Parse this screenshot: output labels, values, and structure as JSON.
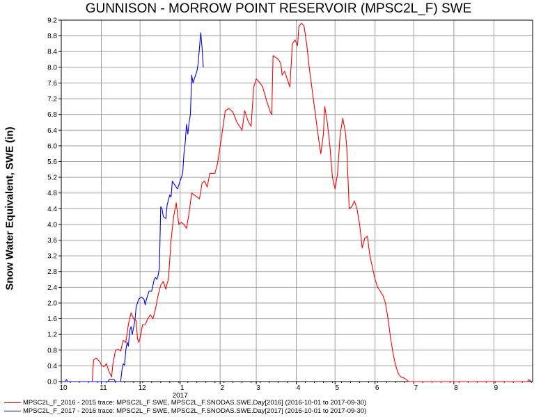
{
  "chart_data": {
    "type": "line",
    "title": "GUNNISON - MORROW POINT RESERVOIR (MPSC2L_F) SWE",
    "ylabel": "Snow Water Equivalent, SWE (in)",
    "xlabel": "",
    "x_tick_labels": [
      "10",
      "11",
      "12",
      "1",
      "2",
      "3",
      "4",
      "5",
      "6",
      "7",
      "8",
      "9"
    ],
    "x_year_label": "2017",
    "xlim": [
      "2016-10-01",
      "2017-09-30"
    ],
    "ylim": [
      0,
      9.2
    ],
    "y_ticks": [
      "0.0",
      "0.4",
      "0.8",
      "1.2",
      "1.6",
      "2.0",
      "2.4",
      "2.8",
      "3.2",
      "3.6",
      "4.0",
      "4.4",
      "4.8",
      "5.2",
      "5.6",
      "6.0",
      "6.4",
      "6.8",
      "7.2",
      "7.6",
      "8.0",
      "8.4",
      "8.8",
      "9.2"
    ],
    "grid": true,
    "legend_position": "bottom",
    "series": [
      {
        "name": "MPSC2L_F_2016 - 2015 trace: MPSC2L_F SWE, MPSC2L_F.SNODAS.SWE.Day[2016] (2016-10-01 to 2017-09-30)",
        "color": "#ff0000",
        "points": [
          [
            "2016-10-01",
            0.0
          ],
          [
            "2016-10-25",
            0.0
          ],
          [
            "2016-10-26",
            0.55
          ],
          [
            "2016-10-28",
            0.6
          ],
          [
            "2016-10-31",
            0.5
          ],
          [
            "2016-11-01",
            0.42
          ],
          [
            "2016-11-03",
            0.38
          ],
          [
            "2016-11-05",
            0.45
          ],
          [
            "2016-11-07",
            0.25
          ],
          [
            "2016-11-09",
            0.12
          ],
          [
            "2016-11-10",
            0.45
          ],
          [
            "2016-11-12",
            0.8
          ],
          [
            "2016-11-14",
            0.82
          ],
          [
            "2016-11-16",
            0.78
          ],
          [
            "2016-11-18",
            1.05
          ],
          [
            "2016-11-20",
            1.0
          ],
          [
            "2016-11-22",
            1.45
          ],
          [
            "2016-11-24",
            1.75
          ],
          [
            "2016-11-26",
            1.6
          ],
          [
            "2016-11-28",
            1.55
          ],
          [
            "2016-11-29",
            1.1
          ],
          [
            "2016-11-30",
            1.0
          ],
          [
            "2016-12-01",
            1.1
          ],
          [
            "2016-12-03",
            1.45
          ],
          [
            "2016-12-05",
            1.45
          ],
          [
            "2016-12-07",
            1.6
          ],
          [
            "2016-12-09",
            1.7
          ],
          [
            "2016-12-11",
            1.6
          ],
          [
            "2016-12-13",
            1.85
          ],
          [
            "2016-12-15",
            2.2
          ],
          [
            "2016-12-17",
            2.45
          ],
          [
            "2016-12-19",
            2.55
          ],
          [
            "2016-12-21",
            2.35
          ],
          [
            "2016-12-22",
            2.5
          ],
          [
            "2016-12-23",
            2.6
          ],
          [
            "2016-12-25",
            3.6
          ],
          [
            "2016-12-27",
            4.2
          ],
          [
            "2016-12-29",
            4.55
          ],
          [
            "2016-12-31",
            4.0
          ],
          [
            "2017-01-02",
            4.05
          ],
          [
            "2017-01-04",
            4.0
          ],
          [
            "2017-01-06",
            3.9
          ],
          [
            "2017-01-08",
            4.3
          ],
          [
            "2017-01-10",
            4.8
          ],
          [
            "2017-01-12",
            4.75
          ],
          [
            "2017-01-14",
            4.7
          ],
          [
            "2017-01-16",
            4.65
          ],
          [
            "2017-01-18",
            5.05
          ],
          [
            "2017-01-20",
            5.1
          ],
          [
            "2017-01-22",
            4.95
          ],
          [
            "2017-01-24",
            5.3
          ],
          [
            "2017-01-28",
            5.3
          ],
          [
            "2017-01-30",
            5.55
          ],
          [
            "2017-02-02",
            6.2
          ],
          [
            "2017-02-05",
            6.9
          ],
          [
            "2017-02-08",
            6.95
          ],
          [
            "2017-02-11",
            6.85
          ],
          [
            "2017-02-14",
            6.6
          ],
          [
            "2017-02-18",
            6.4
          ],
          [
            "2017-02-20",
            6.9
          ],
          [
            "2017-02-23",
            6.6
          ],
          [
            "2017-02-25",
            6.5
          ],
          [
            "2017-02-27",
            7.5
          ],
          [
            "2017-03-01",
            7.7
          ],
          [
            "2017-03-04",
            7.6
          ],
          [
            "2017-03-06",
            7.5
          ],
          [
            "2017-03-09",
            7.15
          ],
          [
            "2017-03-12",
            6.85
          ],
          [
            "2017-03-13",
            6.8
          ],
          [
            "2017-03-14",
            8.3
          ],
          [
            "2017-03-16",
            8.25
          ],
          [
            "2017-03-18",
            8.2
          ],
          [
            "2017-03-20",
            8.1
          ],
          [
            "2017-03-21",
            7.8
          ],
          [
            "2017-03-23",
            7.9
          ],
          [
            "2017-03-25",
            7.7
          ],
          [
            "2017-03-27",
            7.5
          ],
          [
            "2017-03-29",
            8.6
          ],
          [
            "2017-03-31",
            8.7
          ],
          [
            "2017-04-02",
            8.55
          ],
          [
            "2017-04-03",
            9.05
          ],
          [
            "2017-04-05",
            9.12
          ],
          [
            "2017-04-07",
            9.05
          ],
          [
            "2017-04-09",
            8.6
          ],
          [
            "2017-04-11",
            8.0
          ],
          [
            "2017-04-13",
            7.5
          ],
          [
            "2017-04-15",
            7.0
          ],
          [
            "2017-04-17",
            6.5
          ],
          [
            "2017-04-19",
            6.0
          ],
          [
            "2017-04-20",
            5.8
          ],
          [
            "2017-04-22",
            6.3
          ],
          [
            "2017-04-23",
            7.0
          ],
          [
            "2017-04-25",
            6.6
          ],
          [
            "2017-04-27",
            6.0
          ],
          [
            "2017-04-29",
            5.2
          ],
          [
            "2017-05-01",
            4.9
          ],
          [
            "2017-05-03",
            5.3
          ],
          [
            "2017-05-05",
            6.3
          ],
          [
            "2017-05-07",
            6.7
          ],
          [
            "2017-05-09",
            6.35
          ],
          [
            "2017-05-10",
            6.0
          ],
          [
            "2017-05-12",
            4.4
          ],
          [
            "2017-05-14",
            4.45
          ],
          [
            "2017-05-16",
            4.6
          ],
          [
            "2017-05-18",
            4.4
          ],
          [
            "2017-05-20",
            4.0
          ],
          [
            "2017-05-22",
            3.4
          ],
          [
            "2017-05-24",
            3.65
          ],
          [
            "2017-05-26",
            3.7
          ],
          [
            "2017-05-28",
            3.2
          ],
          [
            "2017-05-30",
            2.9
          ],
          [
            "2017-06-01",
            2.6
          ],
          [
            "2017-06-03",
            2.4
          ],
          [
            "2017-06-05",
            2.3
          ],
          [
            "2017-06-07",
            2.2
          ],
          [
            "2017-06-09",
            2.0
          ],
          [
            "2017-06-11",
            1.6
          ],
          [
            "2017-06-13",
            1.1
          ],
          [
            "2017-06-15",
            0.7
          ],
          [
            "2017-06-17",
            0.4
          ],
          [
            "2017-06-19",
            0.2
          ],
          [
            "2017-06-21",
            0.12
          ],
          [
            "2017-06-24",
            0.08
          ],
          [
            "2017-06-27",
            0.0
          ],
          [
            "2017-09-27",
            0.0
          ],
          [
            "2017-09-28",
            0.05
          ],
          [
            "2017-09-30",
            0.0
          ]
        ]
      },
      {
        "name": "MPSC2L_F_2017 - 2016 trace: MPSC2L_F SWE, MPSC2L_F.SNODAS.SWE.Day[2017] (2016-10-01 to 2017-09-30)",
        "color": "#0000ff",
        "points": [
          [
            "2016-10-01",
            0.0
          ],
          [
            "2016-10-04",
            0.0
          ],
          [
            "2016-10-05",
            0.05
          ],
          [
            "2016-10-06",
            0.0
          ],
          [
            "2016-11-06",
            0.0
          ],
          [
            "2016-11-07",
            0.05
          ],
          [
            "2016-11-11",
            0.05
          ],
          [
            "2016-11-12",
            0.0
          ],
          [
            "2016-11-16",
            0.0
          ],
          [
            "2016-11-17",
            0.3
          ],
          [
            "2016-11-18",
            0.45
          ],
          [
            "2016-11-19",
            0.42
          ],
          [
            "2016-11-20",
            0.8
          ],
          [
            "2016-11-21",
            1.0
          ],
          [
            "2016-11-22",
            0.9
          ],
          [
            "2016-11-23",
            1.3
          ],
          [
            "2016-11-24",
            1.4
          ],
          [
            "2016-11-25",
            1.2
          ],
          [
            "2016-11-27",
            1.55
          ],
          [
            "2016-11-28",
            1.9
          ],
          [
            "2016-11-30",
            2.1
          ],
          [
            "2016-12-02",
            2.15
          ],
          [
            "2016-12-04",
            2.1
          ],
          [
            "2016-12-05",
            1.95
          ],
          [
            "2016-12-06",
            2.1
          ],
          [
            "2016-12-08",
            2.3
          ],
          [
            "2016-12-10",
            2.3
          ],
          [
            "2016-12-12",
            2.6
          ],
          [
            "2016-12-13",
            2.65
          ],
          [
            "2016-12-14",
            2.6
          ],
          [
            "2016-12-15",
            2.7
          ],
          [
            "2016-12-16",
            2.9
          ],
          [
            "2016-12-17",
            4.45
          ],
          [
            "2016-12-18",
            4.4
          ],
          [
            "2016-12-19",
            4.2
          ],
          [
            "2016-12-21",
            4.15
          ],
          [
            "2016-12-22",
            4.5
          ],
          [
            "2016-12-24",
            4.75
          ],
          [
            "2016-12-25",
            4.7
          ],
          [
            "2016-12-26",
            5.1
          ],
          [
            "2016-12-28",
            5.0
          ],
          [
            "2016-12-30",
            4.9
          ],
          [
            "2017-01-01",
            5.1
          ],
          [
            "2017-01-03",
            5.3
          ],
          [
            "2017-01-04",
            5.8
          ],
          [
            "2017-01-05",
            6.1
          ],
          [
            "2017-01-06",
            6.55
          ],
          [
            "2017-01-07",
            6.3
          ],
          [
            "2017-01-08",
            6.6
          ],
          [
            "2017-01-09",
            6.8
          ],
          [
            "2017-01-10",
            7.8
          ],
          [
            "2017-01-11",
            7.6
          ],
          [
            "2017-01-12",
            7.7
          ],
          [
            "2017-01-14",
            7.9
          ],
          [
            "2017-01-15",
            8.1
          ],
          [
            "2017-01-16",
            8.5
          ],
          [
            "2017-01-17",
            8.88
          ],
          [
            "2017-01-18",
            8.5
          ],
          [
            "2017-01-19",
            8.0
          ]
        ]
      }
    ]
  }
}
